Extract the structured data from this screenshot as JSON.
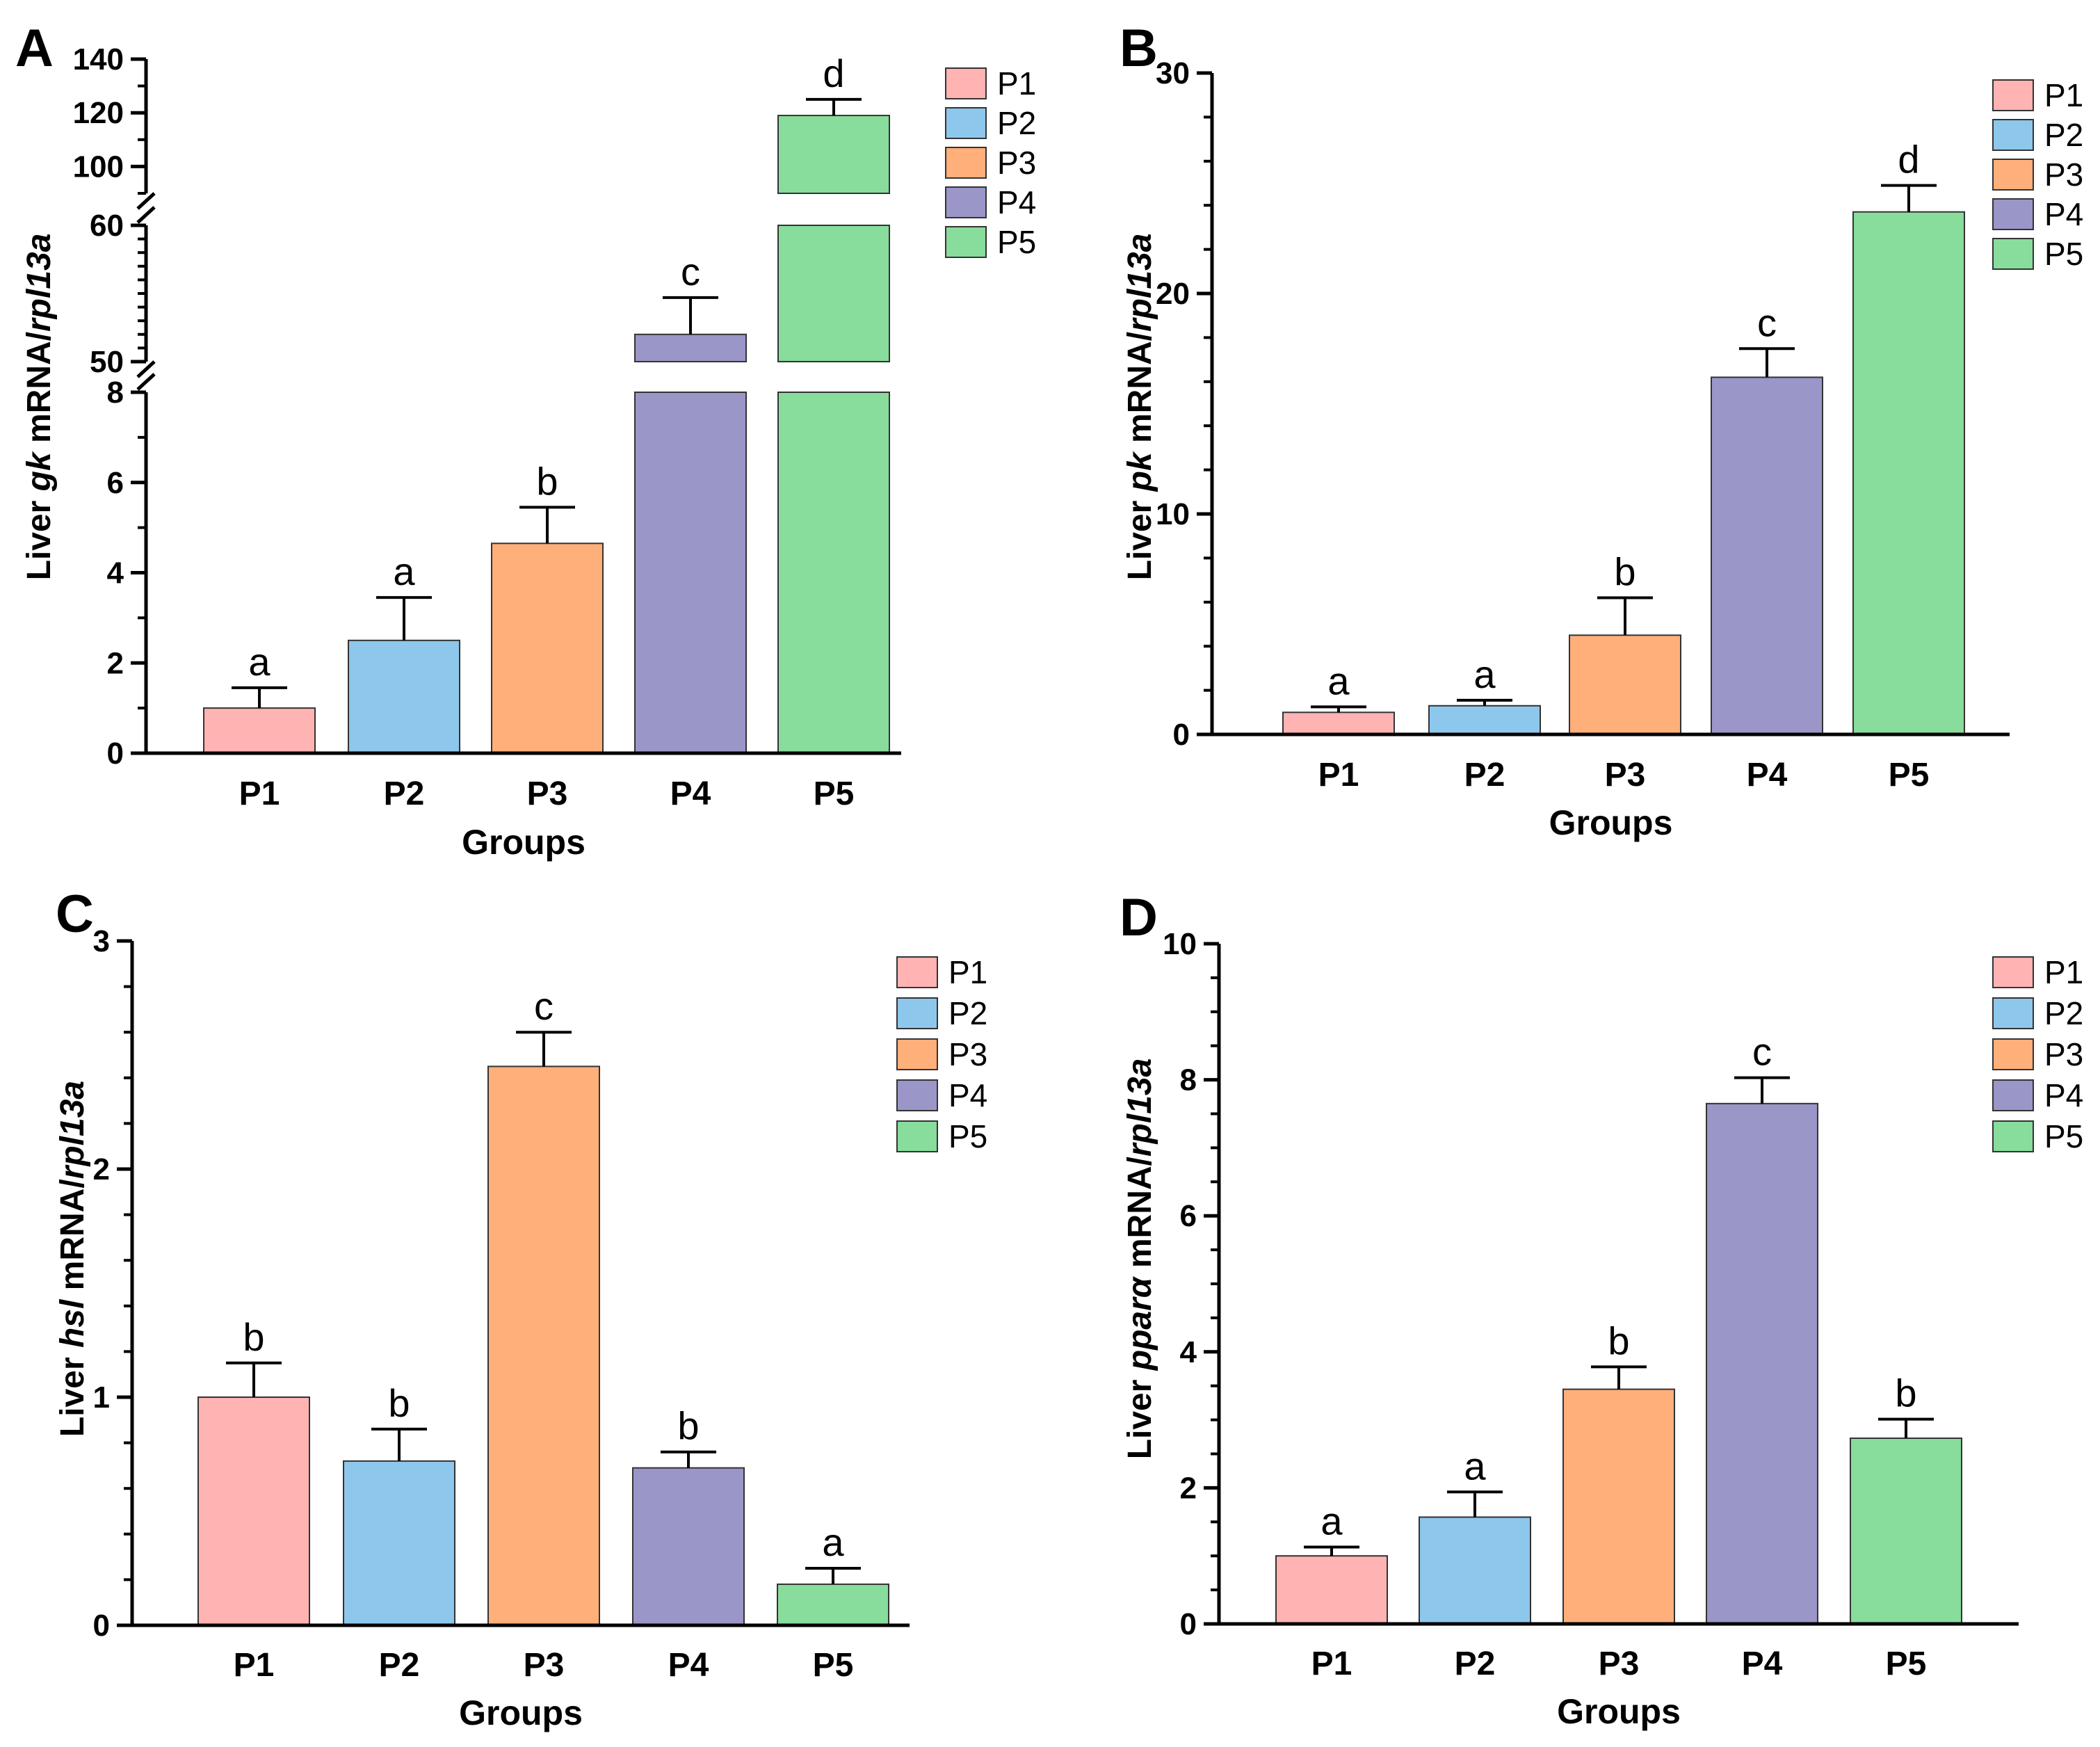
{
  "chart_data": [
    {
      "type": "bar",
      "panel": "A",
      "title": "",
      "ylabel_prefix": "Liver ",
      "ylabel_gene": "gk",
      "ylabel_mid": " mRNA/",
      "ylabel_ref": "rpl13a",
      "xlabel": "Groups",
      "categories": [
        "P1",
        "P2",
        "P3",
        "P4",
        "P5"
      ],
      "values": [
        1.0,
        2.5,
        4.65,
        52.0,
        119.0
      ],
      "errors": [
        0.45,
        0.95,
        0.8,
        2.7,
        6.0
      ],
      "significance": [
        "a",
        "a",
        "b",
        "c",
        "d"
      ],
      "colors": [
        "#ffb3b3",
        "#8ec7ec",
        "#ffb07a",
        "#9b96c8",
        "#88dc9c"
      ],
      "axis_segments": [
        {
          "range": [
            0,
            8
          ],
          "ticks": [
            "0",
            "2",
            "4",
            "6",
            "8"
          ]
        },
        {
          "range": [
            50,
            60
          ],
          "ticks": [
            "50",
            "60"
          ]
        },
        {
          "range": [
            90,
            140
          ],
          "ticks": [
            "100",
            "120",
            "140"
          ]
        }
      ],
      "legend": [
        "P1",
        "P2",
        "P3",
        "P4",
        "P5"
      ]
    },
    {
      "type": "bar",
      "panel": "B",
      "title": "",
      "ylabel_prefix": "Liver ",
      "ylabel_gene": "pk",
      "ylabel_mid": " mRNA/",
      "ylabel_ref": "rpl13a",
      "xlabel": "Groups",
      "categories": [
        "P1",
        "P2",
        "P3",
        "P4",
        "P5"
      ],
      "values": [
        1.0,
        1.3,
        4.5,
        16.2,
        23.7
      ],
      "errors": [
        0.25,
        0.25,
        1.7,
        1.3,
        1.2
      ],
      "significance": [
        "a",
        "a",
        "b",
        "c",
        "d"
      ],
      "colors": [
        "#ffb3b3",
        "#8ec7ec",
        "#ffb07a",
        "#9b96c8",
        "#88dc9c"
      ],
      "ylim": [
        0,
        30
      ],
      "yticks": [
        "0",
        "10",
        "20",
        "30"
      ],
      "legend": [
        "P1",
        "P2",
        "P3",
        "P4",
        "P5"
      ]
    },
    {
      "type": "bar",
      "panel": "C",
      "title": "",
      "ylabel_prefix": "Liver ",
      "ylabel_gene": "hsl",
      "ylabel_mid": " mRNA/",
      "ylabel_ref": "rpl13a",
      "xlabel": "Groups",
      "categories": [
        "P1",
        "P2",
        "P3",
        "P4",
        "P5"
      ],
      "values": [
        1.0,
        0.72,
        2.45,
        0.69,
        0.18
      ],
      "errors": [
        0.15,
        0.14,
        0.15,
        0.07,
        0.07
      ],
      "significance": [
        "b",
        "b",
        "c",
        "b",
        "a"
      ],
      "colors": [
        "#ffb3b3",
        "#8ec7ec",
        "#ffb07a",
        "#9b96c8",
        "#88dc9c"
      ],
      "ylim": [
        0,
        3
      ],
      "yticks": [
        "0",
        "1",
        "2",
        "3"
      ],
      "legend": [
        "P1",
        "P2",
        "P3",
        "P4",
        "P5"
      ]
    },
    {
      "type": "bar",
      "panel": "D",
      "title": "",
      "ylabel_prefix": "Liver ",
      "ylabel_gene": "pparα",
      "ylabel_mid": " mRNA/",
      "ylabel_ref": "rpl13a",
      "xlabel": "Groups",
      "categories": [
        "P1",
        "P2",
        "P3",
        "P4",
        "P5"
      ],
      "values": [
        1.0,
        1.57,
        3.45,
        7.65,
        2.73
      ],
      "errors": [
        0.13,
        0.37,
        0.33,
        0.38,
        0.28
      ],
      "significance": [
        "a",
        "a",
        "b",
        "c",
        "b"
      ],
      "colors": [
        "#ffb3b3",
        "#8ec7ec",
        "#ffb07a",
        "#9b96c8",
        "#88dc9c"
      ],
      "ylim": [
        0,
        10
      ],
      "yticks": [
        "0",
        "2",
        "4",
        "6",
        "8",
        "10"
      ],
      "legend": [
        "P1",
        "P2",
        "P3",
        "P4",
        "P5"
      ]
    }
  ]
}
